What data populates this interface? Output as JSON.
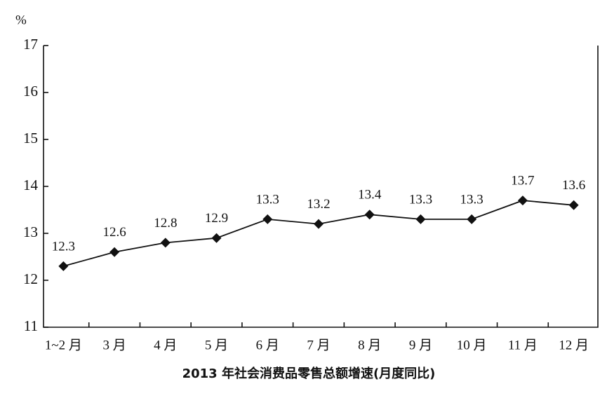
{
  "chart_data": {
    "type": "line",
    "title": "2013 年社会消费品零售总额增速(月度同比)",
    "y_label": "%",
    "categories": [
      "1~2 月",
      "3 月",
      "4 月",
      "5 月",
      "6 月",
      "7 月",
      "8 月",
      "9 月",
      "10 月",
      "11 月",
      "12 月"
    ],
    "series": [
      {
        "name": "社会消费品零售总额增速",
        "color": "#111111",
        "values": [
          12.3,
          12.6,
          12.8,
          12.9,
          13.3,
          13.2,
          13.4,
          13.3,
          13.3,
          13.7,
          13.6
        ]
      }
    ],
    "ylim": [
      11,
      17
    ],
    "yticks": [
      11,
      12,
      13,
      14,
      15,
      16,
      17
    ],
    "grid": false
  }
}
